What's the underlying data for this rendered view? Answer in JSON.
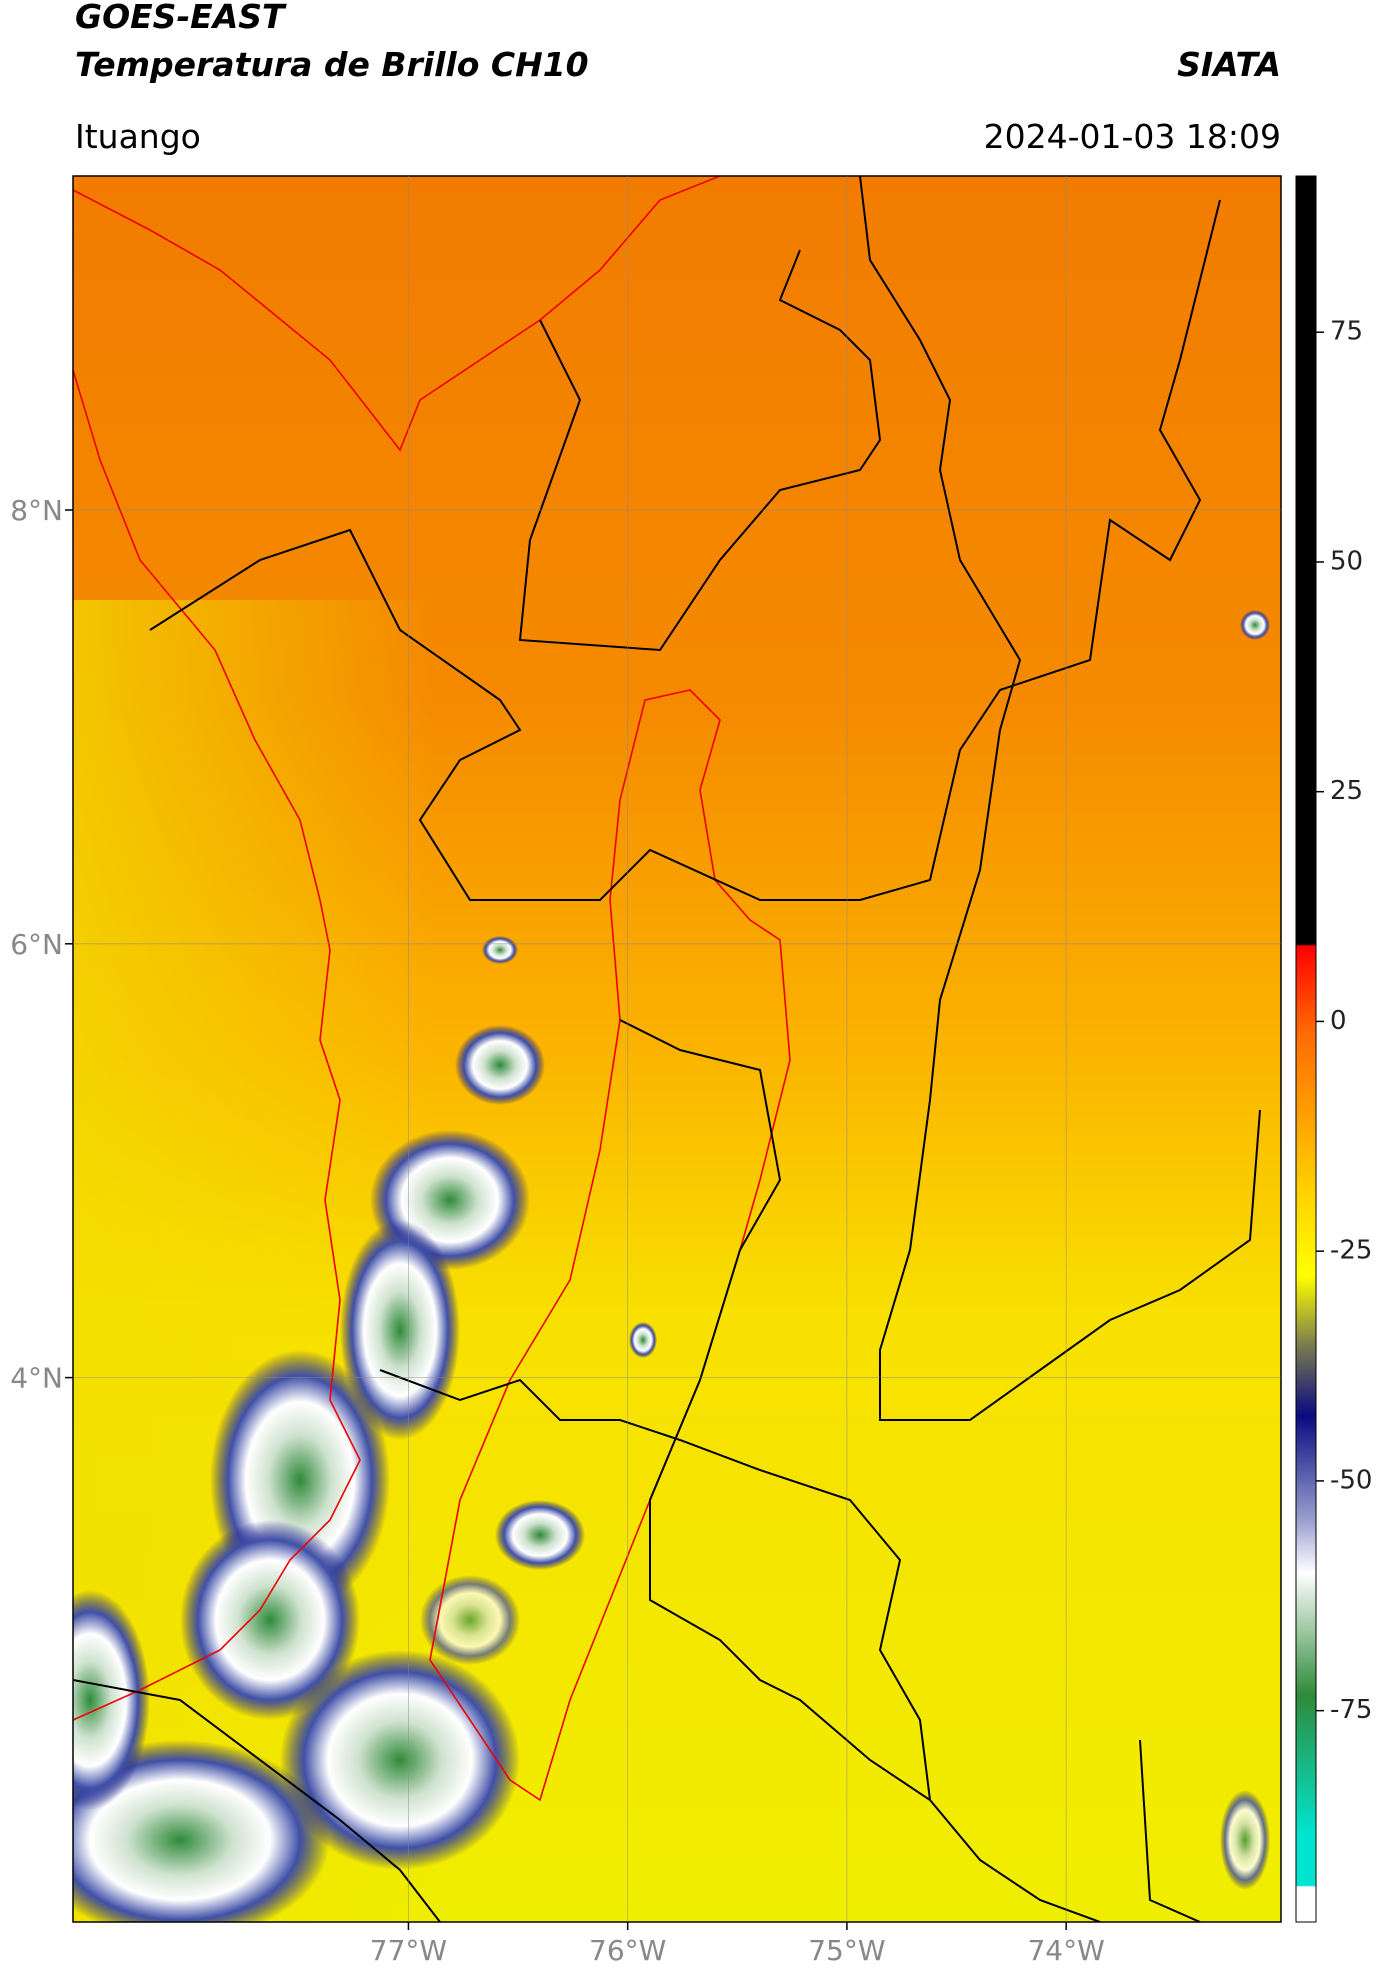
{
  "header": {
    "title": "GOES-EAST",
    "subtitle": "Temperatura de Brillo CH10",
    "org": "SIATA",
    "location": "Ituango",
    "datetime": "2024-01-03 18:09"
  },
  "map": {
    "lonlim": [
      -78.53,
      -73.02
    ],
    "latlim": [
      1.49,
      9.54
    ],
    "lonticks": [
      {
        "value": -77,
        "label": "77°W"
      },
      {
        "value": -76,
        "label": "76°W"
      },
      {
        "value": -75,
        "label": "75°W"
      },
      {
        "value": -74,
        "label": "74°W"
      }
    ],
    "latticks": [
      {
        "value": 8,
        "label": "8°N"
      },
      {
        "value": 6,
        "label": "6°N"
      },
      {
        "value": 4,
        "label": "4°N"
      }
    ],
    "grid": true
  },
  "colorbar": {
    "clim": [
      -98,
      92
    ],
    "ticks": [
      75,
      50,
      25,
      0,
      -25,
      -50,
      -75
    ]
  }
}
